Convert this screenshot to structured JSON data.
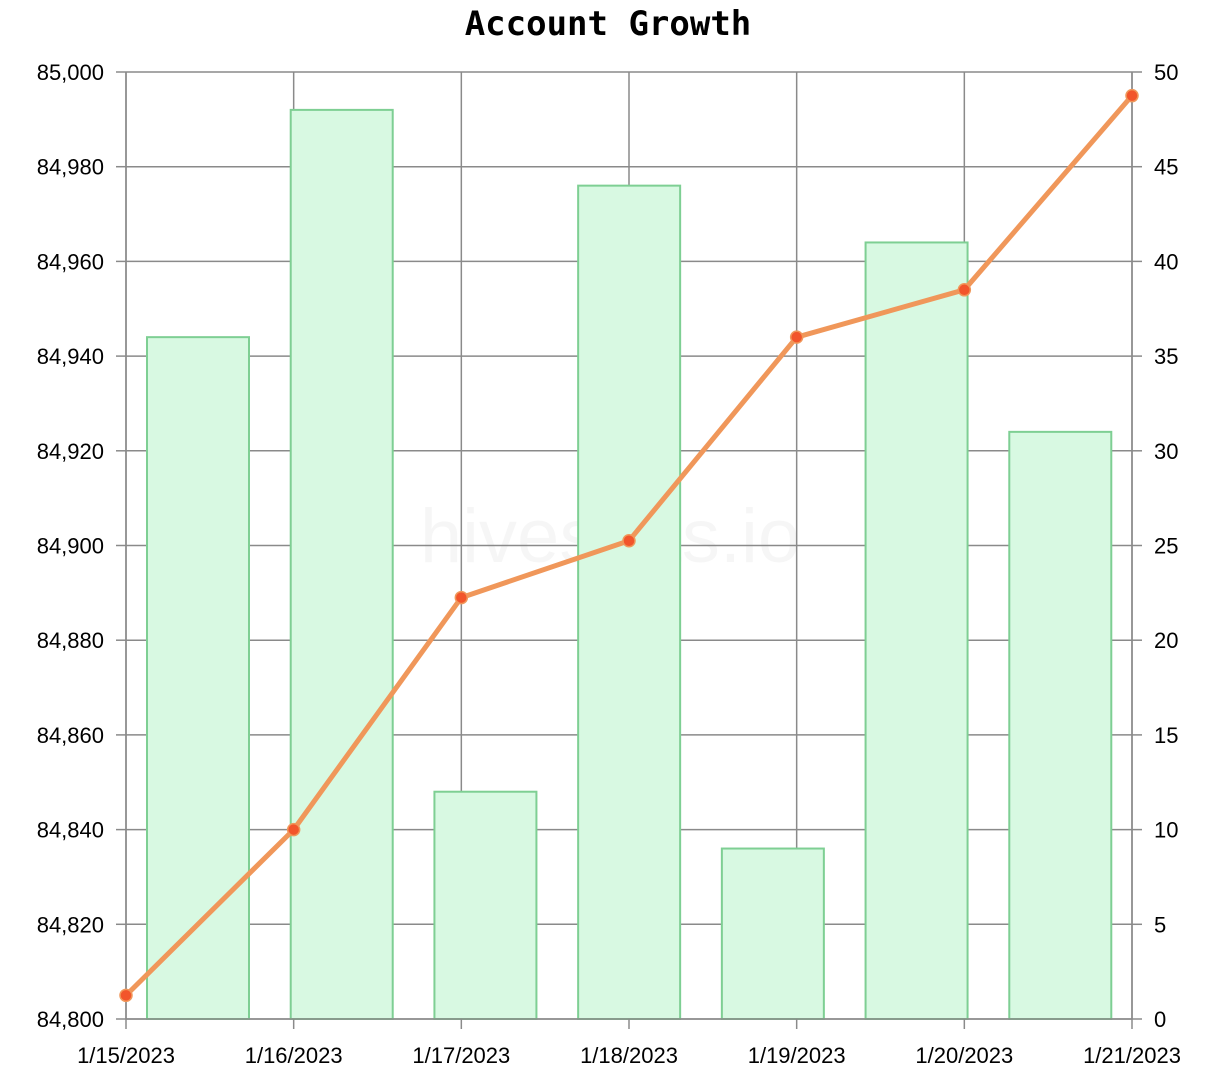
{
  "chart_data": {
    "type": "bar+line",
    "title": "Account Growth",
    "watermark": "hivestats.io",
    "categories": [
      "1/15/2023",
      "1/16/2023",
      "1/17/2023",
      "1/18/2023",
      "1/19/2023",
      "1/20/2023",
      "1/21/2023"
    ],
    "series": [
      {
        "type": "line",
        "axis": "left",
        "values": [
          84805,
          84840,
          84889,
          84901,
          84944,
          84954,
          84995
        ],
        "color": "#f0975a",
        "marker_color": "#f2552b"
      },
      {
        "type": "bar",
        "axis": "right",
        "values": [
          36,
          48,
          12,
          44,
          9,
          41,
          31
        ],
        "fill": "#d8f9e2",
        "stroke": "#7ecf93"
      }
    ],
    "y_left": {
      "range": [
        84800,
        85000
      ],
      "ticks": [
        "84,800",
        "84,820",
        "84,840",
        "84,860",
        "84,880",
        "84,900",
        "84,920",
        "84,940",
        "84,960",
        "84,980",
        "85,000"
      ]
    },
    "y_right": {
      "range": [
        0,
        50
      ],
      "ticks": [
        "0",
        "5",
        "10",
        "15",
        "20",
        "25",
        "30",
        "35",
        "40",
        "45",
        "50"
      ]
    },
    "grid": true
  }
}
